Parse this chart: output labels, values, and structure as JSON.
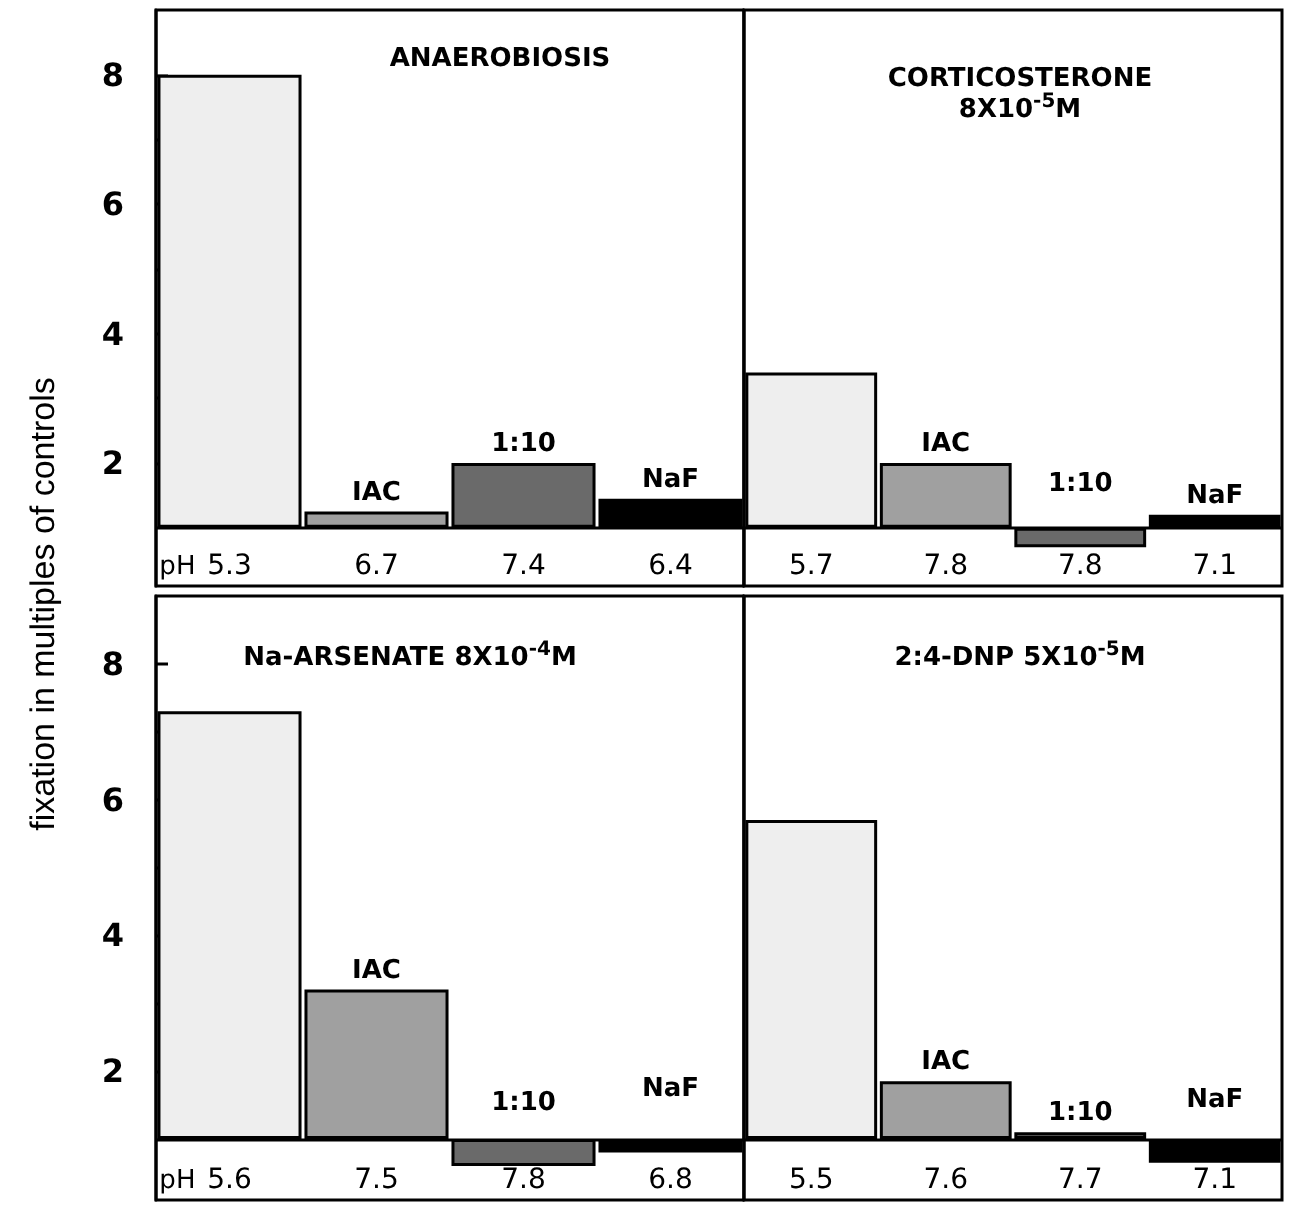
{
  "chart_data": [
    {
      "type": "bar",
      "title": "ANAEROBIOSIS",
      "ylabel": "fixation in multiples of controls",
      "xlabel": "pH",
      "categories": [
        "5.3",
        "6.7",
        "7.4",
        "6.4"
      ],
      "series": [
        {
          "color": "#eeeeee",
          "values": [
            7.0,
            null,
            null,
            null
          ],
          "base": [
            1,
            null,
            null,
            null
          ]
        },
        {
          "name": "IAC",
          "color": "#a0a0a0",
          "values": [
            null,
            0.25,
            null,
            null
          ],
          "base": [
            null,
            1,
            null,
            null
          ]
        },
        {
          "name": "1:10",
          "color": "#6a6a6a",
          "values": [
            null,
            null,
            1.0,
            null
          ],
          "base": [
            null,
            null,
            1,
            null
          ]
        },
        {
          "name": "NaF",
          "color": "#000000",
          "values": [
            null,
            null,
            null,
            0.45
          ],
          "base": [
            null,
            null,
            null,
            1
          ]
        }
      ],
      "ylim": [
        0.1,
        9
      ],
      "yticks": [
        2,
        {
          "value": 3,
          "label": null
        },
        4,
        {
          "value": 5,
          "label": null
        },
        6,
        {
          "value": 7,
          "label": null
        },
        8
      ],
      "ref_lines": [
        {
          "axis": "y",
          "value": 1
        }
      ]
    },
    {
      "type": "bar",
      "title": "CORTICOSTERONE\n8X10$^{-5}$M",
      "categories": [
        "5.7",
        "7.8",
        "7.8",
        "7.1"
      ],
      "series": [
        {
          "color": "#eeeeee",
          "values": [
            2.4,
            null,
            null,
            null
          ],
          "base": [
            1,
            null,
            null,
            null
          ]
        },
        {
          "name": "IAC",
          "color": "#a0a0a0",
          "values": [
            null,
            1.0,
            null,
            null
          ],
          "base": [
            null,
            1,
            null,
            null
          ]
        },
        {
          "name": "1:10",
          "color": "#6a6a6a",
          "values": [
            null,
            null,
            -0.3,
            null
          ],
          "base": [
            null,
            null,
            1,
            null
          ]
        },
        {
          "name": "NaF",
          "color": "#000000",
          "values": [
            null,
            null,
            null,
            0.2
          ],
          "base": [
            null,
            null,
            null,
            1
          ]
        }
      ],
      "ylim": [
        0.1,
        9
      ],
      "yticks": [
        2,
        4,
        6,
        8
      ],
      "tick_labels": "x",
      "ref_lines": [
        {
          "axis": "y",
          "value": 1
        }
      ]
    },
    {
      "type": "bar",
      "title": "Na-ARSENATE 8X10$^{-4}$M",
      "xlabel": "pH",
      "categories": [
        "5.6",
        "7.5",
        "7.8",
        "6.8"
      ],
      "series": [
        {
          "color": "#eeeeee",
          "values": [
            6.3,
            null,
            null,
            null
          ],
          "base": [
            1,
            null,
            null,
            null
          ]
        },
        {
          "name": "IAC",
          "color": "#a0a0a0",
          "values": [
            null,
            2.2,
            null,
            null
          ],
          "base": [
            null,
            1,
            null,
            null
          ]
        },
        {
          "name": "1:10",
          "color": "#6a6a6a",
          "values": [
            null,
            null,
            -0.4,
            null
          ],
          "base": [
            null,
            null,
            1,
            null
          ]
        },
        {
          "name": "NaF",
          "color": "#000000",
          "values": [
            null,
            null,
            null,
            -0.2
          ],
          "base": [
            null,
            null,
            null,
            1
          ]
        }
      ],
      "ylim": [
        0.1,
        9
      ],
      "yticks": [
        2,
        {
          "value": 3,
          "label": null
        },
        4,
        {
          "value": 5,
          "label": null
        },
        6,
        {
          "value": 7,
          "label": null
        },
        8
      ],
      "ref_lines": [
        {
          "axis": "y",
          "value": 1
        }
      ]
    },
    {
      "type": "bar",
      "title": "2:4-DNP 5X10$^{-5}$M",
      "categories": [
        "5.5",
        "7.6",
        "7.7",
        "7.1"
      ],
      "series": [
        {
          "color": "#eeeeee",
          "values": [
            4.7,
            null,
            null,
            null
          ],
          "base": [
            1,
            null,
            null,
            null
          ]
        },
        {
          "name": "IAC",
          "color": "#a0a0a0",
          "values": [
            null,
            0.85,
            null,
            null
          ],
          "base": [
            null,
            1,
            null,
            null
          ]
        },
        {
          "name": "1:10",
          "color": "#6a6a6a",
          "values": [
            null,
            null,
            0.1,
            null
          ],
          "base": [
            null,
            null,
            1,
            null
          ]
        },
        {
          "name": "NaF",
          "color": "#000000",
          "values": [
            null,
            null,
            null,
            -0.35
          ],
          "base": [
            null,
            null,
            null,
            1
          ]
        }
      ],
      "ylim": [
        0.1,
        9
      ],
      "yticks": [
        2,
        4,
        6,
        8
      ],
      "tick_labels": "x",
      "ref_lines": [
        {
          "axis": "y",
          "value": 1
        }
      ]
    }
  ]
}
